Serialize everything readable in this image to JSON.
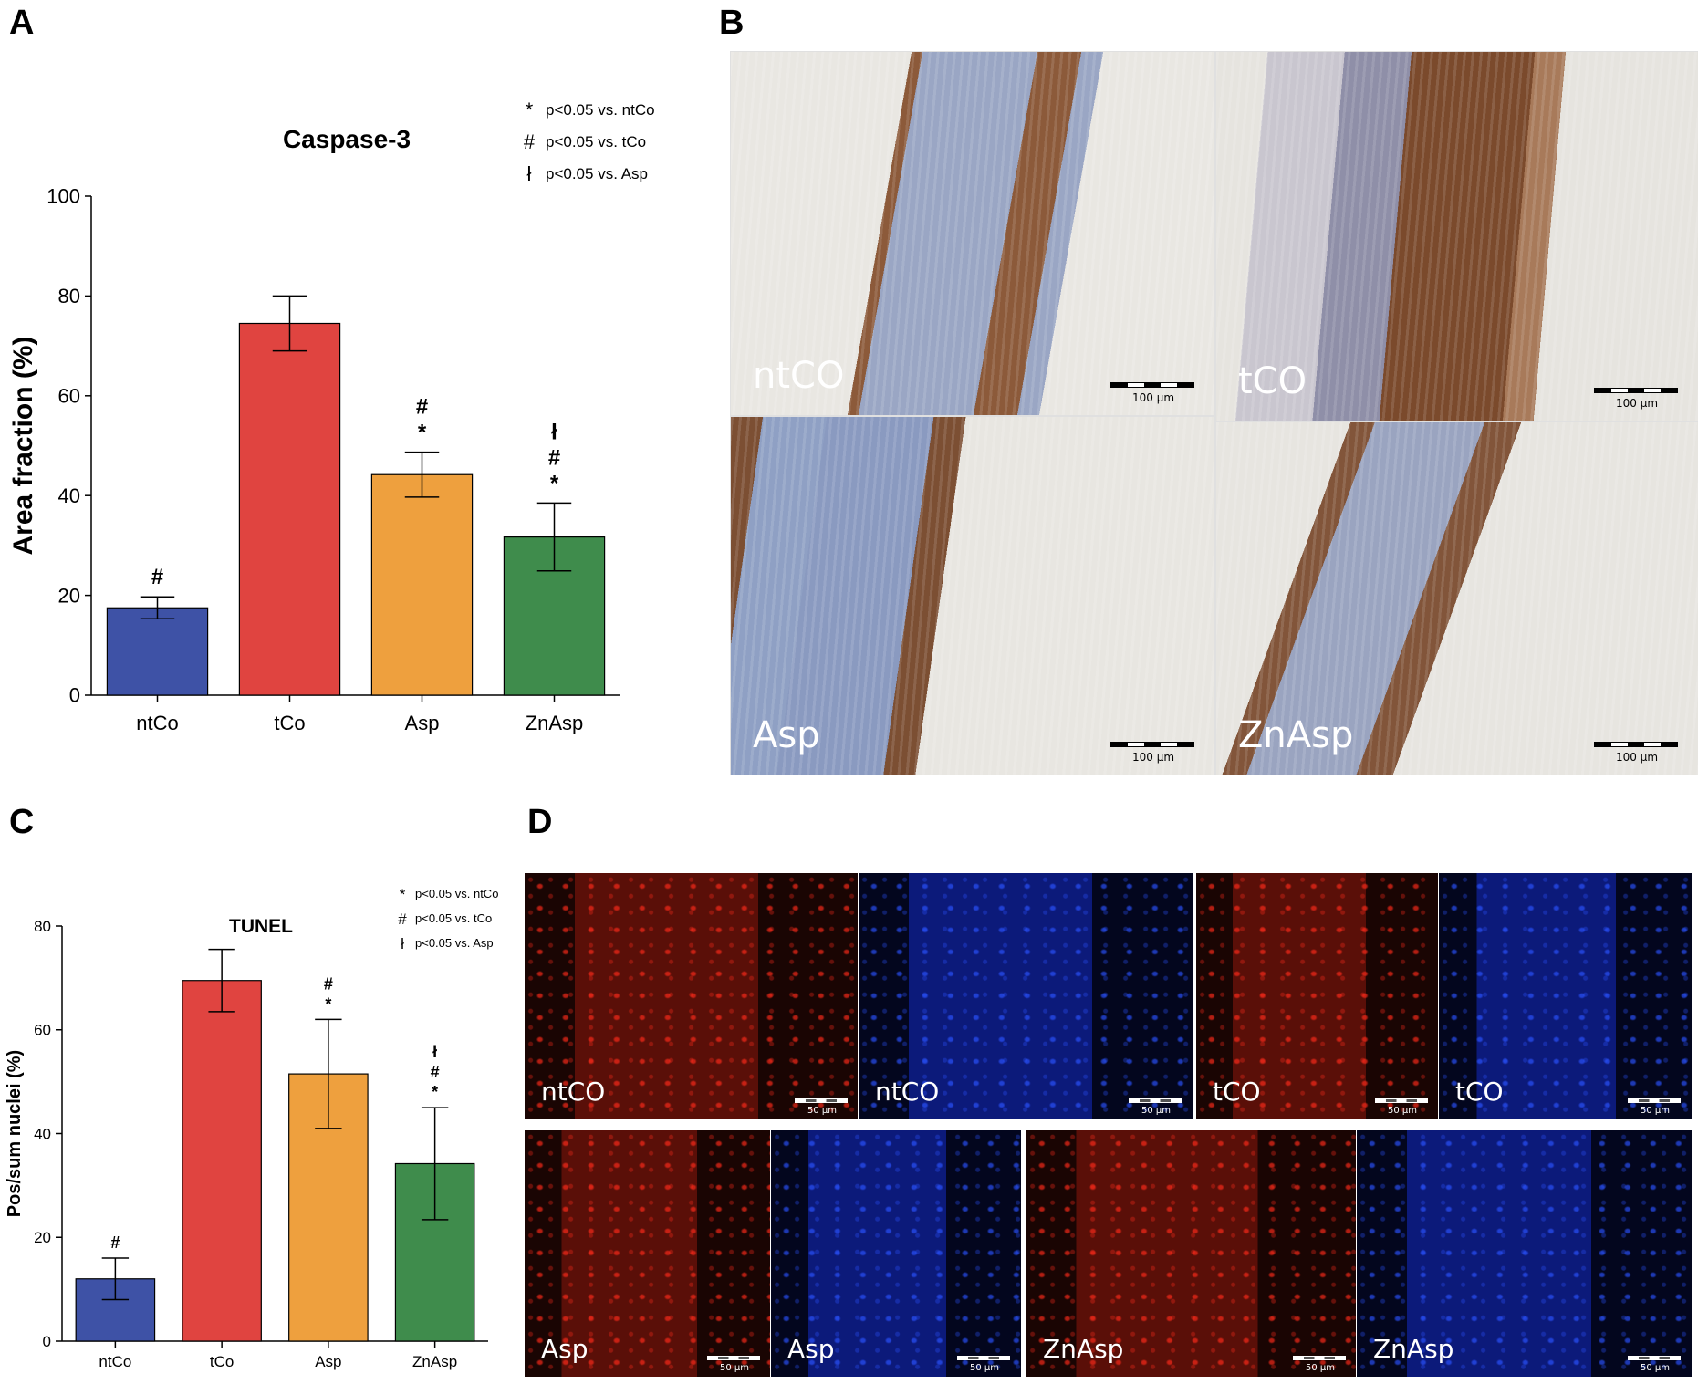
{
  "panels": {
    "A": "A",
    "B": "B",
    "C": "C",
    "D": "D"
  },
  "chart_data": [
    {
      "id": "A",
      "type": "bar",
      "title": "Caspase-3",
      "xlabel": "",
      "ylabel": "Area fraction (%)",
      "ylim": [
        0,
        100
      ],
      "yticks": [
        0,
        20,
        40,
        60,
        80,
        100
      ],
      "categories": [
        "ntCo",
        "tCo",
        "Asp",
        "ZnAsp"
      ],
      "values": [
        17.5,
        74.5,
        44.2,
        31.7
      ],
      "errors": [
        2.2,
        5.5,
        4.5,
        6.8
      ],
      "colors": [
        "#3e52a6",
        "#e04440",
        "#eea03e",
        "#3f8c4c"
      ],
      "annotations": [
        [
          "#"
        ],
        [],
        [
          "*",
          "#"
        ],
        [
          "*",
          "#",
          "ł"
        ]
      ],
      "legend": [
        {
          "symbol": "*",
          "text": "p<0.05 vs. ntCo"
        },
        {
          "symbol": "#",
          "text": "p<0.05 vs. tCo"
        },
        {
          "symbol": "ł",
          "text": "p<0.05 vs. Asp"
        }
      ]
    },
    {
      "id": "C",
      "type": "bar",
      "title": "TUNEL",
      "xlabel": "",
      "ylabel": "Pos/sum nuclei (%)",
      "ylim": [
        0,
        80
      ],
      "yticks": [
        0,
        20,
        40,
        60,
        80
      ],
      "categories": [
        "ntCo",
        "tCo",
        "Asp",
        "ZnAsp"
      ],
      "values": [
        12.0,
        69.5,
        51.5,
        34.2
      ],
      "errors": [
        4.0,
        6.0,
        10.5,
        10.8
      ],
      "colors": [
        "#3e52a6",
        "#e04440",
        "#eea03e",
        "#3f8c4c"
      ],
      "annotations": [
        [
          "#"
        ],
        [],
        [
          "*",
          "#"
        ],
        [
          "*",
          "#",
          "ł"
        ]
      ],
      "legend": [
        {
          "symbol": "*",
          "text": "p<0.05 vs. ntCo"
        },
        {
          "symbol": "#",
          "text": "p<0.05 vs. tCo"
        },
        {
          "symbol": "ł",
          "text": "p<0.05 vs. Asp"
        }
      ]
    }
  ],
  "histology_B": [
    {
      "label": "ntCO",
      "scale": "100 μm",
      "bg": "#e9e7e2",
      "tissue": "#9aa6c4",
      "brown": "#8c5a3a"
    },
    {
      "label": "tCO",
      "scale": "100 μm",
      "bg": "#e6e4df",
      "tissue": "#8f8fa8",
      "brown": "#7b4a2c"
    },
    {
      "label": "Asp",
      "scale": "100 μm",
      "bg": "#e8e6e1",
      "tissue": "#8fa0c4",
      "brown": "#7c4f33"
    },
    {
      "label": "ZnAsp",
      "scale": "100 μm",
      "bg": "#e7e5e0",
      "tissue": "#9aa4c0",
      "brown": "#82553a"
    }
  ],
  "fluorescence_D": [
    {
      "label": "ntCO",
      "scale": "50 μm",
      "channel": "red"
    },
    {
      "label": "ntCO",
      "scale": "50 μm",
      "channel": "blue"
    },
    {
      "label": "tCO",
      "scale": "50 μm",
      "channel": "red"
    },
    {
      "label": "tCO",
      "scale": "50 μm",
      "channel": "blue"
    },
    {
      "label": "Asp",
      "scale": "50 μm",
      "channel": "red"
    },
    {
      "label": "Asp",
      "scale": "50 μm",
      "channel": "blue"
    },
    {
      "label": "ZnAsp",
      "scale": "50 μm",
      "channel": "red"
    },
    {
      "label": "ZnAsp",
      "scale": "50 μm",
      "channel": "blue"
    }
  ],
  "colors": {
    "red_channel": "#ff2a1a",
    "blue_channel": "#2a52ff"
  }
}
